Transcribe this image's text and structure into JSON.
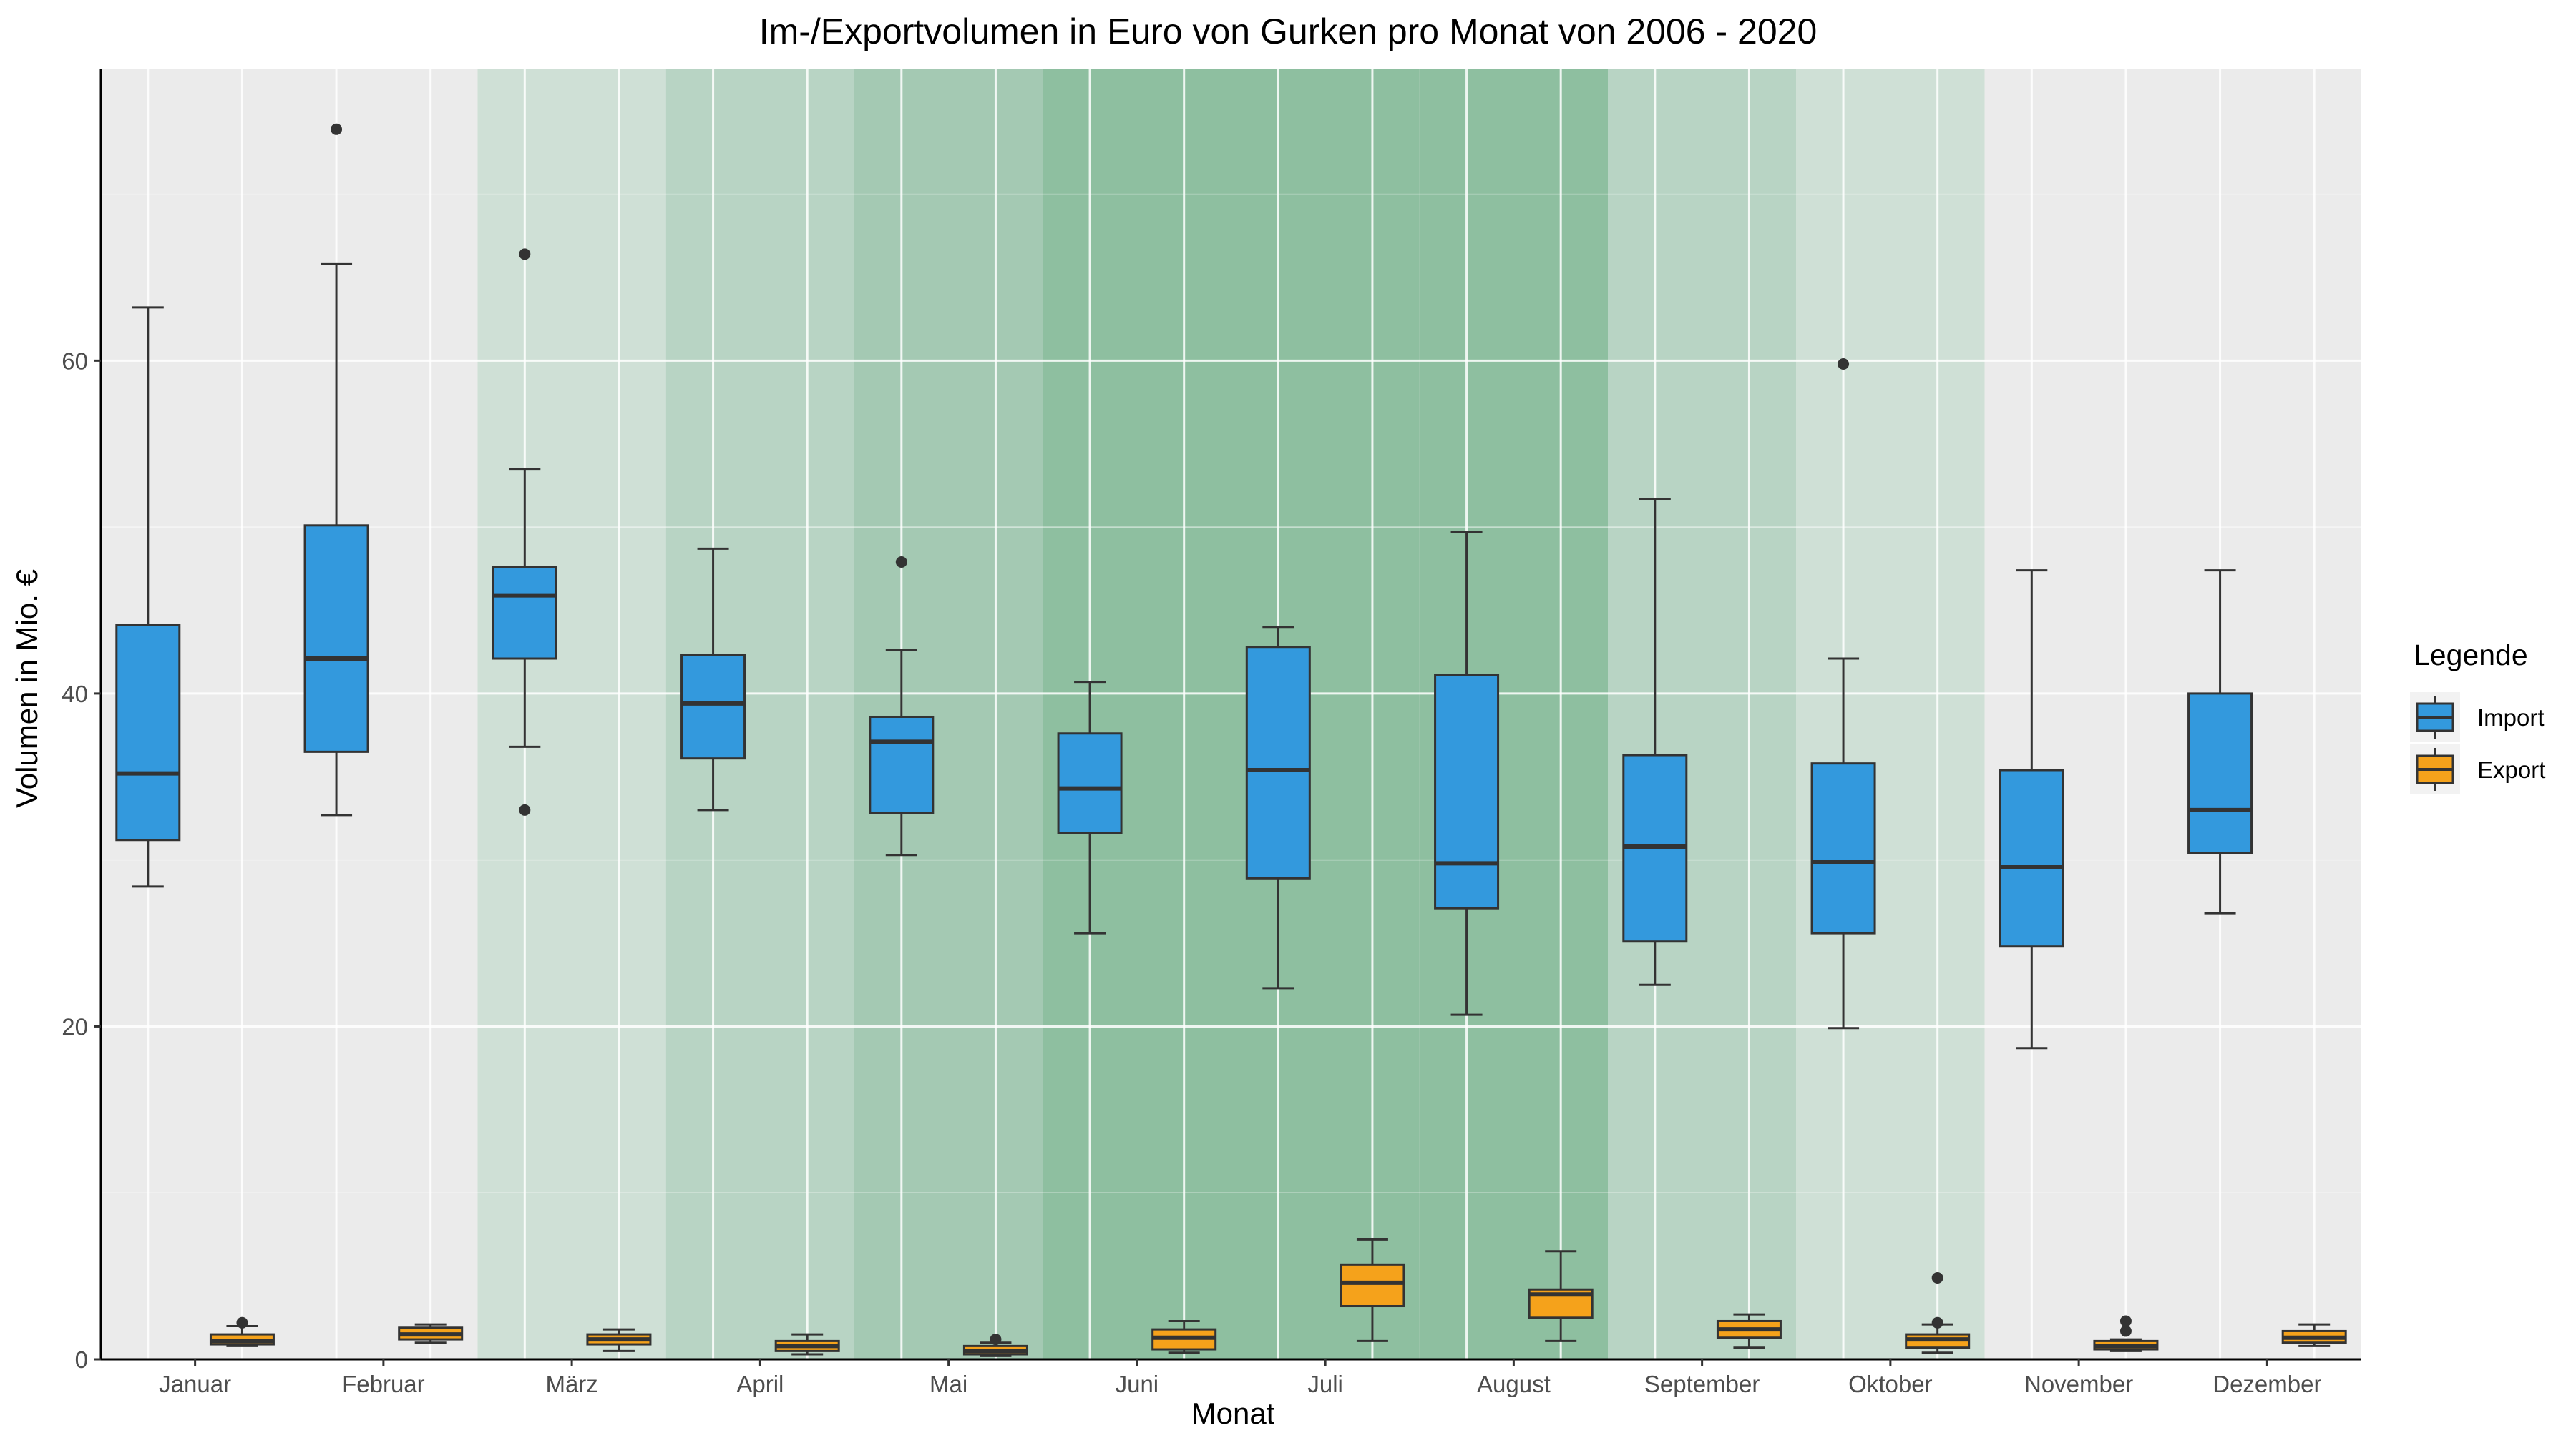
{
  "chart_data": {
    "type": "boxplot",
    "title": "Im-/Exportvolumen in Euro von Gurken pro Monat von 2006 - 2020",
    "xlabel": "Monat",
    "ylabel": "Volumen in Mio. €",
    "ylim": [
      0,
      77.5
    ],
    "yticks": [
      0,
      20,
      40,
      60
    ],
    "categories": [
      "Januar",
      "Februar",
      "März",
      "April",
      "Mai",
      "Juni",
      "Juli",
      "August",
      "September",
      "Oktober",
      "November",
      "Dezember"
    ],
    "season_shading": [
      0,
      0,
      1,
      2,
      3,
      4,
      4,
      4,
      2,
      1,
      0,
      0
    ],
    "grid": true,
    "legend": {
      "title": "Legende",
      "position": "right",
      "entries": [
        "Import",
        "Export"
      ]
    },
    "colors": {
      "Import": "#3399dd",
      "Export": "#f5a21b",
      "panel": "#ebebeb",
      "shade1": "#cfe0d6",
      "shade2": "#b8d4c4",
      "shade3": "#a4c9b3",
      "shade4": "#8ebfa0"
    },
    "series": [
      {
        "name": "Import",
        "boxes": [
          {
            "min": 28.4,
            "q1": 31.2,
            "median": 35.2,
            "q3": 44.1,
            "max": 63.2,
            "outliers": []
          },
          {
            "min": 32.7,
            "q1": 36.5,
            "median": 42.1,
            "q3": 50.1,
            "max": 65.8,
            "outliers": [
              73.9
            ]
          },
          {
            "min": 36.8,
            "q1": 42.1,
            "median": 45.9,
            "q3": 47.6,
            "max": 53.5,
            "outliers": [
              66.4,
              33.0
            ]
          },
          {
            "min": 33.0,
            "q1": 36.1,
            "median": 39.4,
            "q3": 42.3,
            "max": 48.7,
            "outliers": []
          },
          {
            "min": 30.3,
            "q1": 32.8,
            "median": 37.1,
            "q3": 38.6,
            "max": 42.6,
            "outliers": [
              47.9
            ]
          },
          {
            "min": 25.6,
            "q1": 31.6,
            "median": 34.3,
            "q3": 37.6,
            "max": 40.7,
            "outliers": []
          },
          {
            "min": 22.3,
            "q1": 28.9,
            "median": 35.4,
            "q3": 42.8,
            "max": 44.0,
            "outliers": []
          },
          {
            "min": 20.7,
            "q1": 27.1,
            "median": 29.8,
            "q3": 41.1,
            "max": 49.7,
            "outliers": []
          },
          {
            "min": 22.5,
            "q1": 25.1,
            "median": 30.8,
            "q3": 36.3,
            "max": 51.7,
            "outliers": []
          },
          {
            "min": 19.9,
            "q1": 25.6,
            "median": 29.9,
            "q3": 35.8,
            "max": 42.1,
            "outliers": [
              59.8
            ]
          },
          {
            "min": 18.7,
            "q1": 24.8,
            "median": 29.6,
            "q3": 35.4,
            "max": 47.4,
            "outliers": []
          },
          {
            "min": 26.8,
            "q1": 30.4,
            "median": 33.0,
            "q3": 40.0,
            "max": 47.4,
            "outliers": []
          }
        ]
      },
      {
        "name": "Export",
        "boxes": [
          {
            "min": 0.8,
            "q1": 0.9,
            "median": 1.1,
            "q3": 1.5,
            "max": 2.0,
            "outliers": [
              2.2
            ]
          },
          {
            "min": 1.0,
            "q1": 1.2,
            "median": 1.5,
            "q3": 1.9,
            "max": 2.1,
            "outliers": []
          },
          {
            "min": 0.5,
            "q1": 0.9,
            "median": 1.2,
            "q3": 1.5,
            "max": 1.8,
            "outliers": []
          },
          {
            "min": 0.3,
            "q1": 0.5,
            "median": 0.8,
            "q3": 1.1,
            "max": 1.5,
            "outliers": []
          },
          {
            "min": 0.2,
            "q1": 0.3,
            "median": 0.5,
            "q3": 0.8,
            "max": 1.0,
            "outliers": [
              1.2
            ]
          },
          {
            "min": 0.4,
            "q1": 0.6,
            "median": 1.3,
            "q3": 1.8,
            "max": 2.3,
            "outliers": []
          },
          {
            "min": 1.1,
            "q1": 3.2,
            "median": 4.6,
            "q3": 5.7,
            "max": 7.2,
            "outliers": []
          },
          {
            "min": 1.1,
            "q1": 2.5,
            "median": 3.9,
            "q3": 4.2,
            "max": 6.5,
            "outliers": []
          },
          {
            "min": 0.7,
            "q1": 1.3,
            "median": 1.8,
            "q3": 2.3,
            "max": 2.7,
            "outliers": []
          },
          {
            "min": 0.4,
            "q1": 0.7,
            "median": 1.2,
            "q3": 1.5,
            "max": 2.1,
            "outliers": [
              2.2,
              4.9
            ]
          },
          {
            "min": 0.5,
            "q1": 0.6,
            "median": 0.8,
            "q3": 1.1,
            "max": 1.2,
            "outliers": [
              1.7,
              2.3
            ]
          },
          {
            "min": 0.8,
            "q1": 1.0,
            "median": 1.3,
            "q3": 1.7,
            "max": 2.1,
            "outliers": []
          }
        ]
      }
    ]
  }
}
